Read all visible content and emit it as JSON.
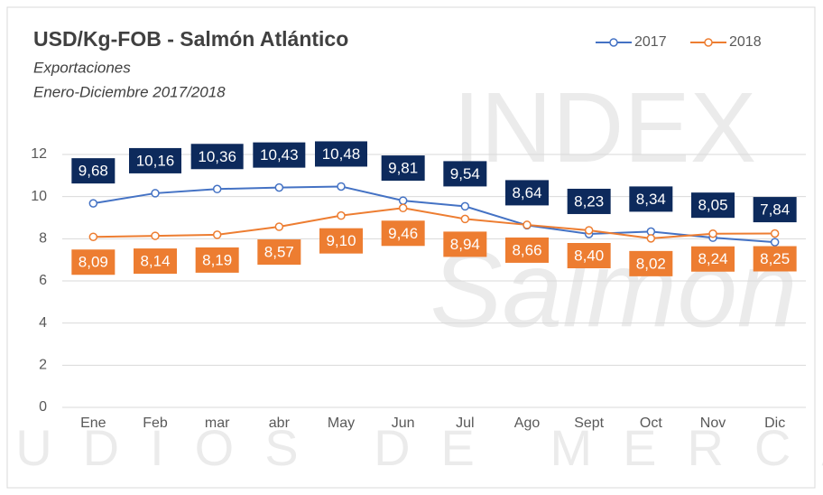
{
  "chart_data": {
    "type": "line",
    "title": "USD/Kg-FOB - Salmón Atlántico",
    "subtitle": [
      "Exportaciones",
      "Enero-Diciembre 2017/2018"
    ],
    "watermark": [
      "INDEX",
      "Salmón",
      "ESTUDIOS DE MERCADO"
    ],
    "categories": [
      "Ene",
      "Feb",
      "mar",
      "abr",
      "May",
      "Jun",
      "Jul",
      "Ago",
      "Sept",
      "Oct",
      "Nov",
      "Dic"
    ],
    "series": [
      {
        "name": "2017",
        "color": "#4472c4",
        "label_color": "#0d2a5c",
        "values": [
          9.68,
          10.16,
          10.36,
          10.43,
          10.48,
          9.81,
          9.54,
          8.64,
          8.23,
          8.34,
          8.05,
          7.84
        ],
        "value_labels": [
          "9,68",
          "10,16",
          "10,36",
          "10,43",
          "10,48",
          "9,81",
          "9,54",
          "8,64",
          "8,23",
          "8,34",
          "8,05",
          "7,84"
        ]
      },
      {
        "name": "2018",
        "color": "#ed7d31",
        "label_color": "#ed7d31",
        "values": [
          8.09,
          8.14,
          8.19,
          8.57,
          9.1,
          9.46,
          8.94,
          8.66,
          8.4,
          8.02,
          8.24,
          8.25
        ],
        "value_labels": [
          "8,09",
          "8,14",
          "8,19",
          "8,57",
          "9,10",
          "9,46",
          "8,94",
          "8,66",
          "8,40",
          "8,02",
          "8,24",
          "8,25"
        ]
      }
    ],
    "ylim": [
      0,
      12
    ],
    "yticks": [
      0,
      2,
      4,
      6,
      8,
      10,
      12
    ],
    "grid": true,
    "legend": "top-right"
  }
}
